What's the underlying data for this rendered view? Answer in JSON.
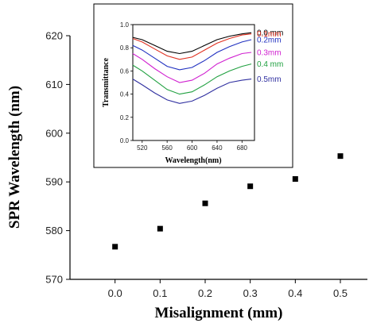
{
  "chart_data": [
    {
      "type": "scatter",
      "xlabel": "Misalignment (mm)",
      "ylabel": "SPR Wavelength (nm)",
      "xlim": [
        -0.1,
        0.56
      ],
      "ylim": [
        570,
        620
      ],
      "x_ticks": [
        0.0,
        0.1,
        0.2,
        0.3,
        0.4,
        0.5
      ],
      "x_tick_labels": [
        "0.0",
        "0.1",
        "0.2",
        "0.3",
        "0.4",
        "0.5"
      ],
      "y_ticks": [
        570,
        580,
        590,
        600,
        610,
        620
      ],
      "y_tick_labels": [
        "570",
        "580",
        "590",
        "600",
        "610",
        "620"
      ],
      "marker": "square",
      "marker_color": "#000000",
      "x": [
        0.0,
        0.1,
        0.2,
        0.3,
        0.4,
        0.5
      ],
      "y": [
        576.7,
        580.4,
        585.6,
        589.1,
        590.6,
        595.3
      ]
    },
    {
      "type": "line",
      "xlabel": "Wavelength(nm)",
      "ylabel": "Transmittance",
      "xlim": [
        505,
        700
      ],
      "ylim": [
        0.0,
        1.0
      ],
      "x_ticks": [
        520,
        560,
        600,
        640,
        680
      ],
      "x_tick_labels": [
        "520",
        "560",
        "600",
        "640",
        "680"
      ],
      "y_ticks": [
        0.0,
        0.2,
        0.4,
        0.6,
        0.8,
        1.0
      ],
      "y_tick_labels": [
        "0.0",
        "0.2",
        "0.4",
        "0.6",
        "0.8",
        "1.0"
      ],
      "x": [
        505,
        520,
        540,
        560,
        580,
        600,
        620,
        640,
        660,
        680,
        695
      ],
      "series": [
        {
          "name": "0.0 mm",
          "color": "#000000",
          "values": [
            0.89,
            0.87,
            0.82,
            0.77,
            0.75,
            0.77,
            0.82,
            0.87,
            0.9,
            0.92,
            0.93
          ]
        },
        {
          "name": "0.1mm",
          "color": "#e03020",
          "values": [
            0.88,
            0.85,
            0.79,
            0.73,
            0.7,
            0.72,
            0.78,
            0.84,
            0.88,
            0.91,
            0.92
          ]
        },
        {
          "name": "0.2mm",
          "color": "#2030c0",
          "values": [
            0.82,
            0.78,
            0.71,
            0.64,
            0.61,
            0.63,
            0.69,
            0.76,
            0.81,
            0.85,
            0.87
          ]
        },
        {
          "name": "0.3mm",
          "color": "#d020d0",
          "values": [
            0.75,
            0.7,
            0.62,
            0.55,
            0.5,
            0.52,
            0.58,
            0.66,
            0.71,
            0.75,
            0.76
          ]
        },
        {
          "name": "0.4 mm",
          "color": "#20a040",
          "values": [
            0.65,
            0.6,
            0.52,
            0.44,
            0.4,
            0.42,
            0.48,
            0.55,
            0.6,
            0.64,
            0.66
          ]
        },
        {
          "name": "0.5mm",
          "color": "#3030a0",
          "values": [
            0.53,
            0.48,
            0.41,
            0.35,
            0.32,
            0.34,
            0.39,
            0.45,
            0.5,
            0.52,
            0.53
          ]
        }
      ]
    }
  ]
}
